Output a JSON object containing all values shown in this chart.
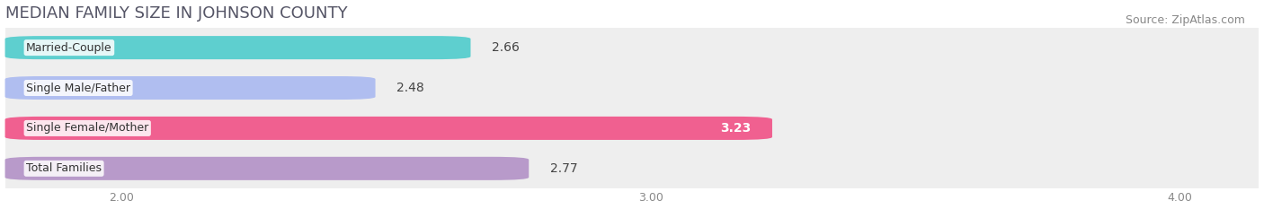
{
  "title": "MEDIAN FAMILY SIZE IN JOHNSON COUNTY",
  "source": "Source: ZipAtlas.com",
  "categories": [
    "Married-Couple",
    "Single Male/Father",
    "Single Female/Mother",
    "Total Families"
  ],
  "values": [
    2.66,
    2.48,
    3.23,
    2.77
  ],
  "bar_colors": [
    "#5ecfcf",
    "#b0bef0",
    "#f06090",
    "#b89aca"
  ],
  "value_label_colors": [
    "#444444",
    "#444444",
    "#ffffff",
    "#444444"
  ],
  "value_label_inside": [
    false,
    false,
    true,
    false
  ],
  "xlim_min": 1.78,
  "xlim_max": 4.15,
  "xticks": [
    2.0,
    3.0,
    4.0
  ],
  "xtick_labels": [
    "2.00",
    "3.00",
    "4.00"
  ],
  "title_fontsize": 13,
  "source_fontsize": 9,
  "bar_label_fontsize": 10,
  "category_fontsize": 9,
  "background_color": "#ffffff",
  "bar_bg_color": "#eeeeee",
  "bar_height": 0.58,
  "bar_gap_color": "#ffffff"
}
